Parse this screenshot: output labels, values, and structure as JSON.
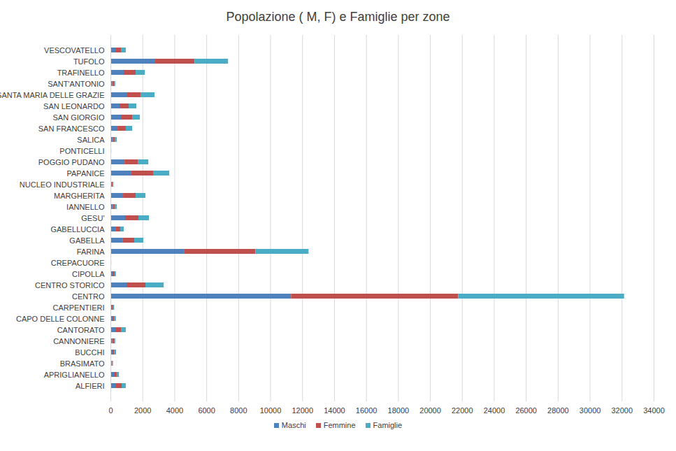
{
  "chart_data": {
    "type": "bar",
    "orientation": "horizontal",
    "stacked": true,
    "title": "Popolazione ( M, F) e Famiglie per zone",
    "categories": [
      "ALFIERI",
      "APRIGLIANELLO",
      "BRASIMATO",
      "BUCCHI",
      "CANNONIERE",
      "CANTORATO",
      "CAPO DELLE COLONNE",
      "CARPENTIERI",
      "CENTRO",
      "CENTRO STORICO",
      "CIPOLLA",
      "CREPACUORE",
      "FARINA",
      "GABELLA",
      "GABELLUCCIA",
      "GESU'",
      "IANNELLO",
      "MARGHERITA",
      "NUCLEO INDUSTRIALE",
      "PAPANICE",
      "POGGIO PUDANO",
      "PONTICELLI",
      "SALICA",
      "SAN FRANCESCO",
      "SAN GIORGIO",
      "SAN LEONARDO",
      "SANTA MARIA DELLE GRAZIE",
      "SANT'ANTONIO",
      "TRAFINELLO",
      "TUFOLO",
      "VESCOVATELLO"
    ],
    "series": [
      {
        "name": "Maschi",
        "color": "#4f81bd",
        "values": [
          350,
          220,
          60,
          130,
          110,
          350,
          130,
          90,
          11300,
          1050,
          130,
          20,
          4600,
          750,
          310,
          920,
          150,
          790,
          80,
          1310,
          880,
          20,
          150,
          440,
          700,
          570,
          1010,
          110,
          830,
          2760,
          350
        ]
      },
      {
        "name": "Femmine",
        "color": "#c0504d",
        "values": [
          350,
          170,
          60,
          120,
          110,
          310,
          120,
          80,
          10470,
          1140,
          130,
          20,
          4470,
          740,
          300,
          830,
          140,
          790,
          70,
          1360,
          830,
          20,
          140,
          520,
          660,
          570,
          870,
          110,
          750,
          2500,
          310
        ]
      },
      {
        "name": "Famiglie",
        "color": "#4bacc6",
        "values": [
          260,
          140,
          40,
          100,
          80,
          300,
          90,
          60,
          10380,
          1140,
          80,
          10,
          3330,
          570,
          220,
          660,
          100,
          610,
          40,
          1010,
          660,
          10,
          100,
          400,
          480,
          480,
          880,
          80,
          570,
          2100,
          300
        ]
      }
    ],
    "xlim": [
      0,
      34000
    ],
    "xticks": [
      0,
      2000,
      4000,
      6000,
      8000,
      10000,
      12000,
      14000,
      16000,
      18000,
      20000,
      22000,
      24000,
      26000,
      28000,
      30000,
      32000,
      34000
    ],
    "grid": true,
    "legend": "bottom"
  }
}
